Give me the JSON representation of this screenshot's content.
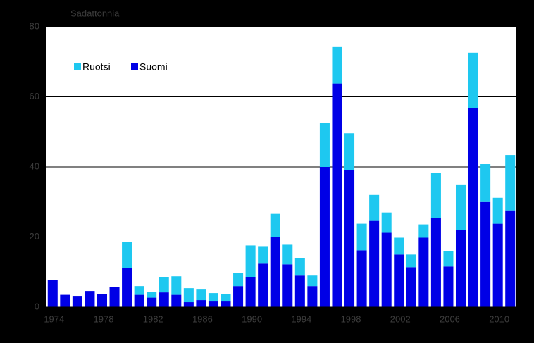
{
  "chart_data": {
    "type": "stacked-bar",
    "y_label": "Sadattonnia",
    "categories": [
      "1974",
      null,
      null,
      null,
      "1978",
      null,
      null,
      null,
      "1982",
      null,
      null,
      null,
      "1986",
      null,
      null,
      null,
      "1990",
      null,
      null,
      null,
      "1994",
      null,
      null,
      null,
      "1998",
      null,
      null,
      null,
      "2002",
      null,
      null,
      null,
      "2006",
      null,
      null,
      null,
      "2010",
      null
    ],
    "series": [
      {
        "name": "Suomi",
        "color": "#0000e6",
        "values": [
          7.8,
          3.5,
          3.2,
          4.6,
          3.8,
          5.8,
          11.2,
          3.5,
          2.7,
          4.2,
          3.5,
          1.4,
          2,
          1.6,
          1.6,
          6,
          8.6,
          12.4,
          20,
          12.2,
          9,
          6,
          40,
          63.8,
          39,
          16.2,
          24.6,
          21.2,
          15,
          11.4,
          19.8,
          25.4,
          11.6,
          22,
          56.8,
          30,
          23.8,
          27.6
        ]
      },
      {
        "name": "Ruotsi",
        "color": "#1ec8f0",
        "values": [
          0,
          0,
          0,
          0,
          0,
          0,
          7.4,
          2.5,
          1.6,
          4.4,
          5.3,
          4,
          3,
          2.4,
          2.2,
          3.8,
          9,
          5,
          6.6,
          5.6,
          5,
          3,
          12.6,
          10.4,
          10.6,
          7.6,
          7.4,
          5.8,
          4.8,
          3.6,
          3.8,
          12.8,
          4.4,
          13,
          15.8,
          10.8,
          7.4,
          15.8
        ]
      }
    ],
    "ylim": [
      0,
      80
    ],
    "yticks": [
      0,
      20,
      40,
      60,
      80
    ],
    "grid": true
  }
}
